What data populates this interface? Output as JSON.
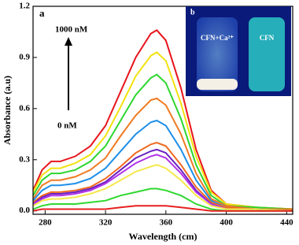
{
  "chart_data": {
    "type": "line",
    "x_label": "Wavelength (cm)",
    "y_label": "Absorbance (a.u)",
    "annotations": {
      "panel": "a",
      "high": "1000 nM",
      "low": "0 nM",
      "inset_panel": "b",
      "inset_left": "CFN+Ca²⁺",
      "inset_right": "CFN"
    },
    "x": [
      272,
      278,
      284,
      290,
      300,
      310,
      320,
      330,
      340,
      350,
      354,
      360,
      370,
      380,
      390,
      400,
      420,
      444
    ],
    "series": [
      {
        "color": "#e8141c",
        "values": [
          0.12,
          0.24,
          0.29,
          0.29,
          0.32,
          0.38,
          0.5,
          0.7,
          0.9,
          1.04,
          1.06,
          1.0,
          0.72,
          0.36,
          0.12,
          0.04,
          0.02,
          0.01
        ]
      },
      {
        "color": "#f2e20f",
        "values": [
          0.11,
          0.21,
          0.25,
          0.25,
          0.28,
          0.33,
          0.44,
          0.61,
          0.79,
          0.91,
          0.93,
          0.88,
          0.63,
          0.32,
          0.11,
          0.04,
          0.02,
          0.01
        ]
      },
      {
        "color": "#2ed62e",
        "values": [
          0.09,
          0.18,
          0.22,
          0.22,
          0.24,
          0.29,
          0.38,
          0.53,
          0.68,
          0.78,
          0.8,
          0.75,
          0.54,
          0.27,
          0.09,
          0.03,
          0.02,
          0.01
        ]
      },
      {
        "color": "#f07b22",
        "values": [
          0.07,
          0.15,
          0.18,
          0.18,
          0.2,
          0.24,
          0.31,
          0.44,
          0.56,
          0.65,
          0.66,
          0.62,
          0.45,
          0.22,
          0.07,
          0.03,
          0.01,
          0.01
        ]
      },
      {
        "color": "#1f8fe8",
        "values": [
          0.06,
          0.12,
          0.15,
          0.15,
          0.16,
          0.19,
          0.25,
          0.35,
          0.45,
          0.52,
          0.53,
          0.5,
          0.36,
          0.18,
          0.06,
          0.02,
          0.01,
          0
        ]
      },
      {
        "color": "#f06a20",
        "values": [
          0.05,
          0.09,
          0.11,
          0.11,
          0.12,
          0.14,
          0.19,
          0.26,
          0.34,
          0.39,
          0.4,
          0.38,
          0.27,
          0.14,
          0.05,
          0.02,
          0.01,
          0
        ]
      },
      {
        "color": "#6a1fc0",
        "values": [
          0.04,
          0.08,
          0.1,
          0.1,
          0.11,
          0.13,
          0.17,
          0.24,
          0.31,
          0.35,
          0.36,
          0.34,
          0.24,
          0.12,
          0.04,
          0.01,
          0.01,
          0
        ]
      },
      {
        "color": "#b030e8",
        "values": [
          0.04,
          0.07,
          0.09,
          0.09,
          0.1,
          0.12,
          0.16,
          0.22,
          0.28,
          0.32,
          0.33,
          0.31,
          0.22,
          0.11,
          0.04,
          0.01,
          0.01,
          0
        ]
      },
      {
        "color": "#f5e84a",
        "values": [
          0.03,
          0.06,
          0.07,
          0.07,
          0.08,
          0.1,
          0.13,
          0.18,
          0.23,
          0.26,
          0.27,
          0.25,
          0.18,
          0.09,
          0.03,
          0.01,
          0.01,
          0
        ]
      },
      {
        "color": "#30d830",
        "values": [
          0.01,
          0.03,
          0.04,
          0.04,
          0.04,
          0.05,
          0.06,
          0.09,
          0.11,
          0.13,
          0.13,
          0.12,
          0.09,
          0.04,
          0.01,
          0,
          0,
          0
        ]
      },
      {
        "color": "#e82020",
        "values": [
          0,
          0.01,
          0.01,
          0.01,
          0.01,
          0.01,
          0.01,
          0.02,
          0.03,
          0.03,
          0.03,
          0.03,
          0.02,
          0.01,
          0,
          0,
          0,
          0
        ]
      }
    ],
    "xlim": [
      272,
      444
    ],
    "ylim": [
      -0.02,
      1.2
    ],
    "xticks": [
      280,
      320,
      360,
      400,
      440
    ],
    "yticks": [
      {
        "value": 0,
        "label": "0.0"
      },
      0.3,
      0.6,
      0.9,
      1.2
    ]
  }
}
